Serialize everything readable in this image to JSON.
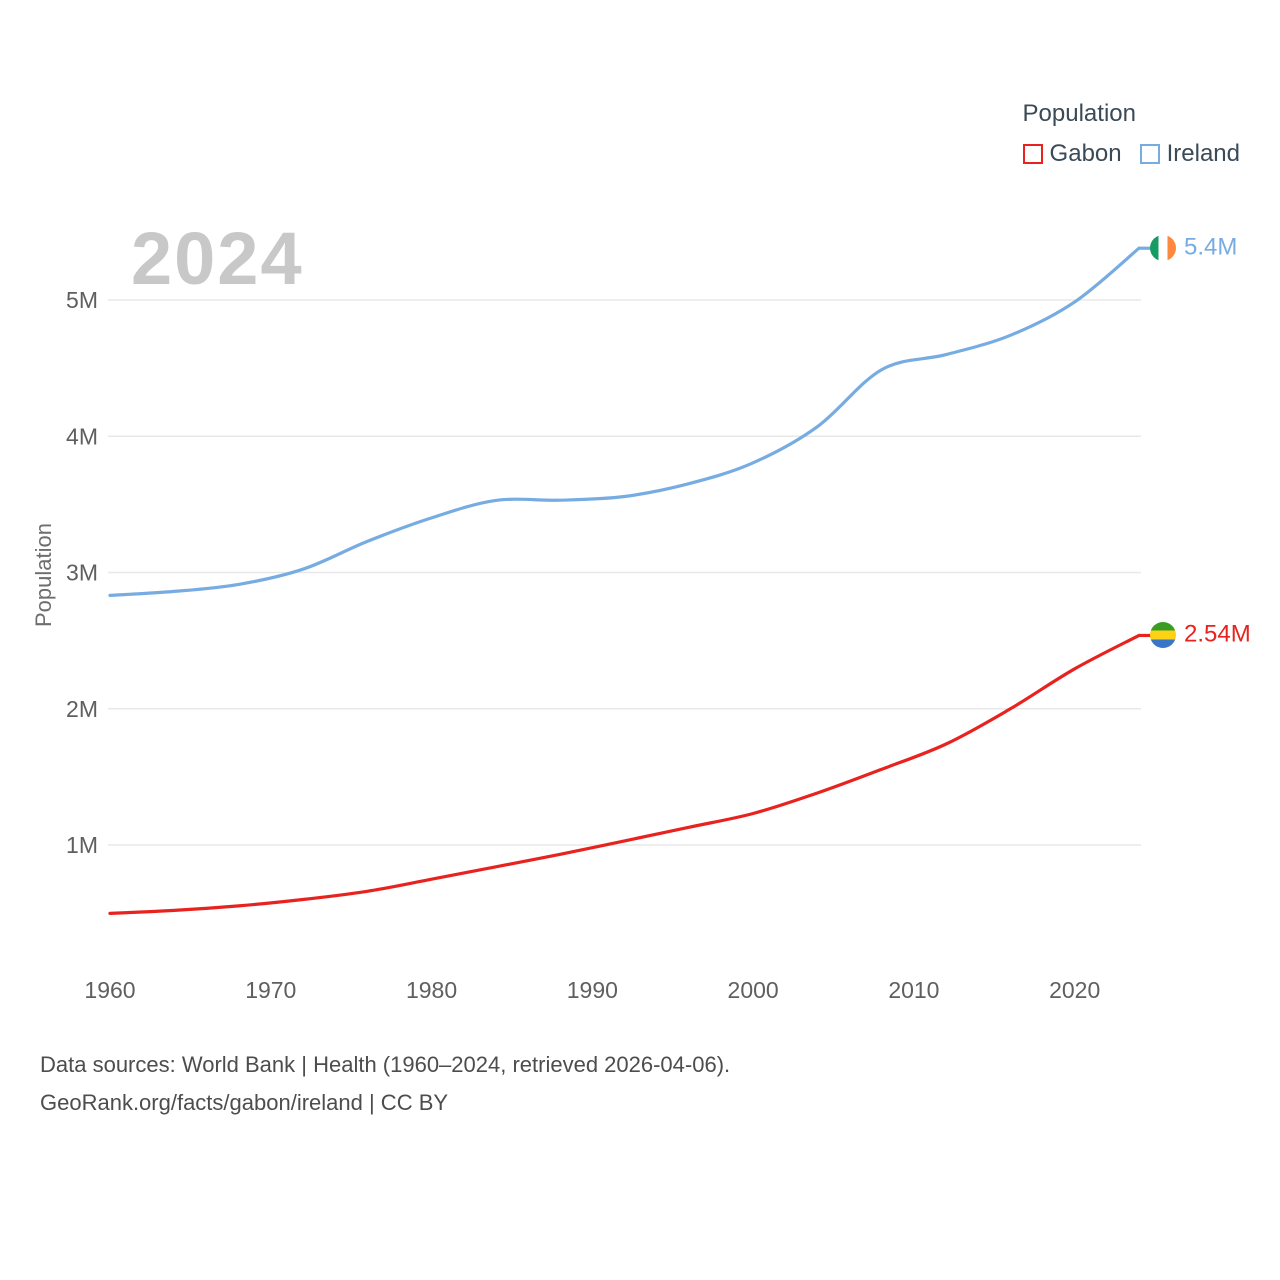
{
  "legend": {
    "title": "Population",
    "items": [
      {
        "label": "Gabon",
        "color": "#e8231f"
      },
      {
        "label": "Ireland",
        "color": "#76ace1"
      }
    ]
  },
  "watermark": "2024",
  "chart_data": {
    "type": "line",
    "ylabel": "Population",
    "x": [
      1960,
      1964,
      1968,
      1972,
      1976,
      1980,
      1984,
      1988,
      1992,
      1996,
      2000,
      2004,
      2008,
      2012,
      2016,
      2020,
      2024
    ],
    "series": [
      {
        "name": "Gabon",
        "color": "#e8231f",
        "flag": "gabon",
        "end_label": "2.54M",
        "values": [
          498000,
          520000,
          553000,
          600000,
          660000,
          749000,
          840000,
          932000,
          1030000,
          1130000,
          1231000,
          1382000,
          1556000,
          1741000,
          2000000,
          2293000,
          2538000
        ]
      },
      {
        "name": "Ireland",
        "color": "#76ace1",
        "flag": "ireland",
        "end_label": "5.4M",
        "values": [
          2832000,
          2861000,
          2913000,
          3024000,
          3228000,
          3401000,
          3529000,
          3531000,
          3558000,
          3652000,
          3805000,
          4070000,
          4489000,
          4599000,
          4741000,
          4986000,
          5380000
        ]
      }
    ],
    "xticks": [
      1960,
      1970,
      1980,
      1990,
      2000,
      2010,
      2020
    ],
    "yticks": [
      {
        "value": 1000000,
        "label": "1M"
      },
      {
        "value": 2000000,
        "label": "2M"
      },
      {
        "value": 3000000,
        "label": "3M"
      },
      {
        "value": 4000000,
        "label": "4M"
      },
      {
        "value": 5000000,
        "label": "5M"
      }
    ],
    "xlim": [
      1960,
      2024
    ],
    "ylim": [
      0,
      5600000
    ],
    "grid": true,
    "legend_position": "top-right"
  },
  "flag_colors": {
    "ireland": [
      "#169b62",
      "#ffffff",
      "#ff883e"
    ],
    "gabon": [
      "#3a9d23",
      "#fcd116",
      "#3777c6"
    ]
  },
  "footer": {
    "line1": "Data sources: World Bank | Health (1960–2024, retrieved 2026-04-06).",
    "line2": "GeoRank.org/facts/gabon/ireland | CC BY"
  }
}
